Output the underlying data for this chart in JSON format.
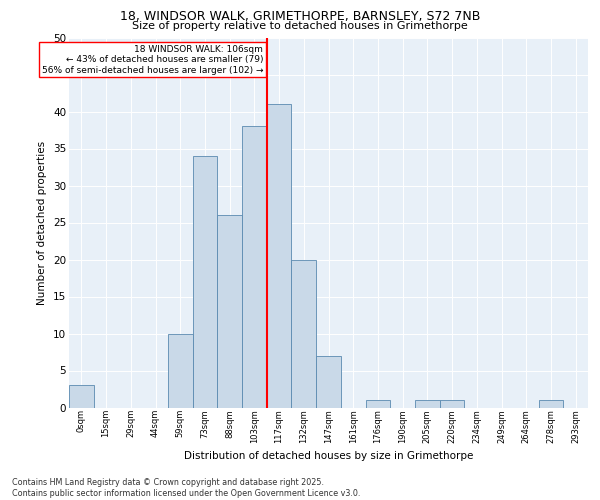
{
  "title1": "18, WINDSOR WALK, GRIMETHORPE, BARNSLEY, S72 7NB",
  "title2": "Size of property relative to detached houses in Grimethorpe",
  "xlabel": "Distribution of detached houses by size in Grimethorpe",
  "ylabel": "Number of detached properties",
  "bin_labels": [
    "0sqm",
    "15sqm",
    "29sqm",
    "44sqm",
    "59sqm",
    "73sqm",
    "88sqm",
    "103sqm",
    "117sqm",
    "132sqm",
    "147sqm",
    "161sqm",
    "176sqm",
    "190sqm",
    "205sqm",
    "220sqm",
    "234sqm",
    "249sqm",
    "264sqm",
    "278sqm",
    "293sqm"
  ],
  "bar_values": [
    3,
    0,
    0,
    0,
    10,
    34,
    26,
    38,
    41,
    20,
    7,
    0,
    1,
    0,
    1,
    1,
    0,
    0,
    0,
    1,
    0
  ],
  "bar_color": "#c9d9e8",
  "bar_edge_color": "#5a8ab0",
  "subject_line_label": "18 WINDSOR WALK: 106sqm",
  "annotation_line1": "← 43% of detached houses are smaller (79)",
  "annotation_line2": "56% of semi-detached houses are larger (102) →",
  "vline_color": "red",
  "annotation_box_edge_color": "red",
  "ylim": [
    0,
    50
  ],
  "yticks": [
    0,
    5,
    10,
    15,
    20,
    25,
    30,
    35,
    40,
    45,
    50
  ],
  "background_color": "#e8f0f8",
  "footer_line1": "Contains HM Land Registry data © Crown copyright and database right 2025.",
  "footer_line2": "Contains public sector information licensed under the Open Government Licence v3.0."
}
